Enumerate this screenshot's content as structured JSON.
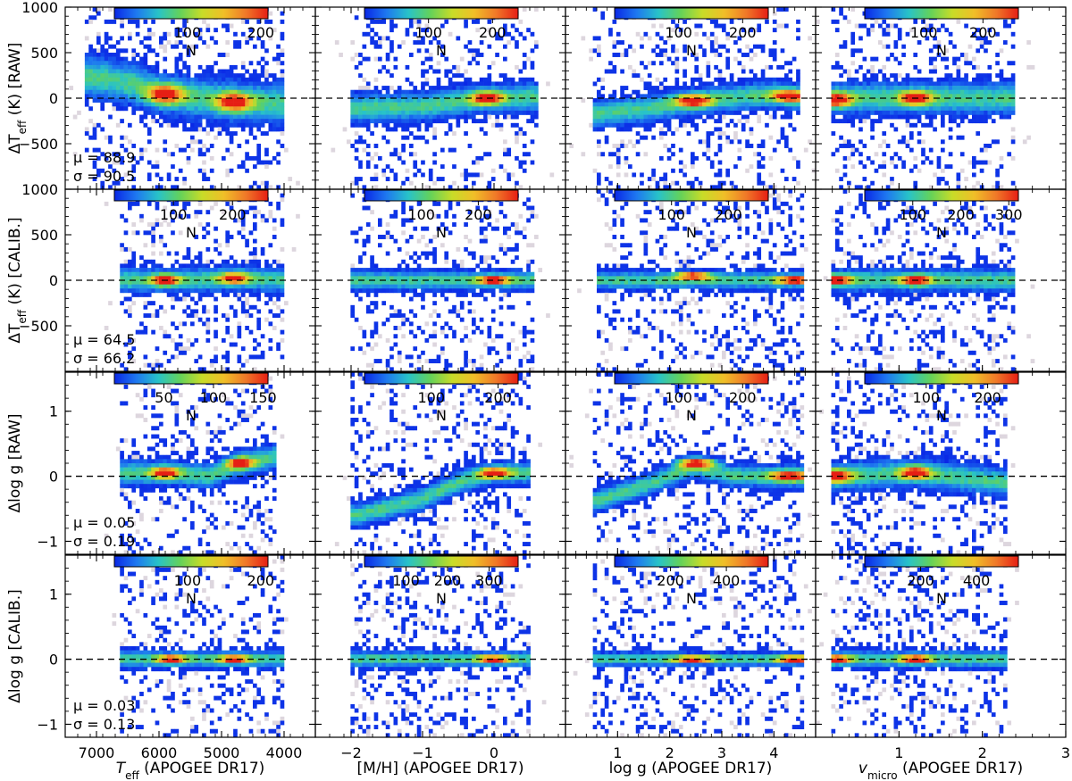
{
  "chart_data": {
    "type": "heatmap",
    "description_type": "2D histogram grid (4x4)",
    "columns": [
      {
        "name": "teff",
        "xlabel": "T_eff (APOGEE DR17)",
        "xlabel_main": "T",
        "xlabel_sub": "eff",
        "xlabel_rest": " (APOGEE DR17)",
        "xlim": [
          7500,
          3500
        ],
        "xticks": [
          7000,
          6000,
          5000,
          4000
        ],
        "xtick_labels": [
          "7000",
          "6000",
          "5000",
          "4000"
        ]
      },
      {
        "name": "mh",
        "xlabel": "[M/H] (APOGEE DR17)",
        "xlabel_main": "[M/H] (APOGEE DR17)",
        "xlabel_sub": "",
        "xlabel_rest": "",
        "xlim": [
          -2.5,
          1.0
        ],
        "xticks": [
          -2,
          -1,
          0
        ],
        "xtick_labels": [
          "−2",
          "−1",
          "0"
        ]
      },
      {
        "name": "logg",
        "xlabel": "log g (APOGEE DR17)",
        "xlabel_main": "log g (APOGEE DR17)",
        "xlabel_sub": "",
        "xlabel_rest": "",
        "xlim": [
          0.0,
          4.8
        ],
        "xticks": [
          1,
          2,
          3,
          4
        ],
        "xtick_labels": [
          "1",
          "2",
          "3",
          "4"
        ]
      },
      {
        "name": "vmicro",
        "xlabel": "v_micro (APOGEE DR17)",
        "xlabel_main": "v",
        "xlabel_sub": "micro",
        "xlabel_rest": " (APOGEE DR17)",
        "xlim": [
          0.0,
          3.0
        ],
        "xticks": [
          1,
          2,
          3
        ],
        "xtick_labels": [
          "1",
          "2",
          "3"
        ]
      }
    ],
    "rows": [
      {
        "name": "dteff-raw",
        "ylabel": "ΔT_eff (K) [RAW]",
        "ylabel_main": "ΔT",
        "ylabel_sub": "eff",
        "ylabel_rest": " (K) [RAW]",
        "ylim": [
          -1000,
          1000
        ],
        "yticks": [
          1000,
          500,
          0,
          -500
        ],
        "ytick_labels": [
          "1000",
          "500",
          "0",
          "−500"
        ],
        "mu": "μ = 88.9",
        "sigma": "σ = 90.5"
      },
      {
        "name": "dteff-calib",
        "ylabel": "ΔT_eff (K) [CALIB.]",
        "ylabel_main": "ΔT",
        "ylabel_sub": "eff",
        "ylabel_rest": " (K) [CALIB.]",
        "ylim": [
          -1000,
          1000
        ],
        "yticks": [
          1000,
          500,
          0,
          -500
        ],
        "ytick_labels": [
          "1000",
          "500",
          "0",
          "−500"
        ],
        "mu": "μ = 64.5",
        "sigma": "σ = 66.2"
      },
      {
        "name": "dlogg-raw",
        "ylabel": "Δlog g [RAW]",
        "ylabel_main": "Δlog g [RAW]",
        "ylabel_sub": "",
        "ylabel_rest": "",
        "ylim": [
          -1.2,
          1.6
        ],
        "yticks": [
          1,
          0,
          -1
        ],
        "ytick_labels": [
          "1",
          "0",
          "−1"
        ],
        "mu": "μ = 0.05",
        "sigma": "σ = 0.19"
      },
      {
        "name": "dlogg-calib",
        "ylabel": "Δlog g [CALIB.]",
        "ylabel_main": "Δlog g [CALIB.]",
        "ylabel_sub": "",
        "ylabel_rest": "",
        "ylim": [
          -1.2,
          1.6
        ],
        "yticks": [
          1,
          0,
          -1
        ],
        "ytick_labels": [
          "1",
          "0",
          "−1"
        ],
        "mu": "μ = 0.03",
        "sigma": "σ = 0.13"
      }
    ],
    "colorbars": [
      [
        {
          "max": 210,
          "ticks": [
            100,
            200
          ],
          "labels": [
            "100",
            "200"
          ]
        },
        {
          "max": 240,
          "ticks": [
            100,
            200
          ],
          "labels": [
            "100",
            "200"
          ]
        },
        {
          "max": 240,
          "ticks": [
            100,
            200
          ],
          "labels": [
            "100",
            "200"
          ]
        },
        {
          "max": 260,
          "ticks": [
            100,
            200
          ],
          "labels": [
            "100",
            "200"
          ]
        }
      ],
      [
        {
          "max": 260,
          "ticks": [
            100,
            200
          ],
          "labels": [
            "100",
            "200"
          ]
        },
        {
          "max": 270,
          "ticks": [
            100,
            200
          ],
          "labels": [
            "100",
            "200"
          ]
        },
        {
          "max": 270,
          "ticks": [
            100,
            200
          ],
          "labels": [
            "100",
            "200"
          ]
        },
        {
          "max": 320,
          "ticks": [
            100,
            200,
            300
          ],
          "labels": [
            "100",
            "200",
            "300"
          ]
        }
      ],
      [
        {
          "max": 155,
          "ticks": [
            50,
            100,
            150
          ],
          "labels": [
            "50",
            "100",
            "150"
          ]
        },
        {
          "max": 230,
          "ticks": [
            100,
            200
          ],
          "labels": [
            "100",
            "200"
          ]
        },
        {
          "max": 240,
          "ticks": [
            100,
            200
          ],
          "labels": [
            "100",
            "200"
          ]
        },
        {
          "max": 250,
          "ticks": [
            100,
            200
          ],
          "labels": [
            "100",
            "200"
          ]
        }
      ],
      [
        {
          "max": 210,
          "ticks": [
            100,
            200
          ],
          "labels": [
            "100",
            "200"
          ]
        },
        {
          "max": 370,
          "ticks": [
            100,
            200,
            300
          ],
          "labels": [
            "100",
            "200",
            "300"
          ]
        },
        {
          "max": 550,
          "ticks": [
            200,
            400
          ],
          "labels": [
            "200",
            "400"
          ]
        },
        {
          "max": 550,
          "ticks": [
            200,
            400
          ],
          "labels": [
            "200",
            "400"
          ]
        }
      ]
    ],
    "colorbar_label": "N",
    "colormap": [
      "#0a28e6",
      "#1e78f0",
      "#28c3c8",
      "#64d25a",
      "#c8dc28",
      "#f0be28",
      "#f07828",
      "#e61e14"
    ],
    "background_bin_color": "#ddd6de",
    "reference_line": {
      "y": 0,
      "style": "dashed",
      "color": "#000000"
    },
    "blobs": [
      [
        {
          "band": [
            [
              7100,
              240
            ],
            [
              6400,
              150
            ],
            [
              6000,
              60
            ],
            [
              5400,
              0
            ],
            [
              4800,
              -40
            ],
            [
              4000,
              -60
            ]
          ],
          "core": [
            [
              5900,
              40
            ],
            [
              4800,
              -40
            ]
          ],
          "xr": [
            7200,
            4000
          ],
          "spread": 260
        },
        {
          "band": [
            [
              -1.9,
              -110
            ],
            [
              -1.0,
              -90
            ],
            [
              -0.5,
              -40
            ],
            [
              0.0,
              0
            ],
            [
              0.5,
              10
            ]
          ],
          "core": [
            [
              -0.1,
              0
            ]
          ],
          "xr": [
            -2.0,
            0.6
          ],
          "spread": 180
        },
        {
          "band": [
            [
              0.6,
              -170
            ],
            [
              1.5,
              -120
            ],
            [
              2.4,
              -40
            ],
            [
              3.2,
              0
            ],
            [
              4.0,
              40
            ],
            [
              4.5,
              10
            ]
          ],
          "core": [
            [
              2.45,
              -30
            ],
            [
              4.3,
              20
            ]
          ],
          "xr": [
            0.5,
            4.5
          ],
          "spread": 170
        },
        {
          "band": [
            [
              0.25,
              0
            ],
            [
              1.2,
              0
            ],
            [
              2.3,
              0
            ]
          ],
          "core": [
            [
              1.2,
              0
            ],
            [
              0.25,
              -20
            ]
          ],
          "xr": [
            0.2,
            2.4
          ],
          "spread": 200
        }
      ],
      [
        {
          "band": [
            [
              6600,
              0
            ],
            [
              5500,
              0
            ],
            [
              4800,
              20
            ],
            [
              4000,
              0
            ]
          ],
          "core": [
            [
              5900,
              0
            ],
            [
              4800,
              20
            ]
          ],
          "xr": [
            6600,
            4000
          ],
          "spread": 150
        },
        {
          "band": [
            [
              -1.9,
              0
            ],
            [
              -1.0,
              0
            ],
            [
              0.0,
              0
            ],
            [
              0.5,
              0
            ]
          ],
          "core": [
            [
              0.0,
              0
            ]
          ],
          "xr": [
            -2.0,
            0.55
          ],
          "spread": 120
        },
        {
          "band": [
            [
              0.6,
              0
            ],
            [
              2.0,
              0
            ],
            [
              3.0,
              0
            ],
            [
              4.5,
              0
            ]
          ],
          "core": [
            [
              2.45,
              50
            ],
            [
              4.4,
              0
            ]
          ],
          "xr": [
            0.6,
            4.6
          ],
          "spread": 110
        },
        {
          "band": [
            [
              0.25,
              0
            ],
            [
              1.2,
              0
            ],
            [
              2.3,
              0
            ]
          ],
          "core": [
            [
              1.2,
              0
            ],
            [
              0.25,
              0
            ]
          ],
          "xr": [
            0.2,
            2.4
          ],
          "spread": 140
        }
      ],
      [
        {
          "band": [
            [
              6500,
              0.05
            ],
            [
              5800,
              0.05
            ],
            [
              5200,
              0.0
            ],
            [
              4700,
              0.2
            ],
            [
              4100,
              0.3
            ]
          ],
          "core": [
            [
              5900,
              0.05
            ],
            [
              4700,
              0.2
            ]
          ],
          "xr": [
            6600,
            4100
          ],
          "spread": 0.22
        },
        {
          "band": [
            [
              -1.9,
              -0.6
            ],
            [
              -1.0,
              -0.35
            ],
            [
              -0.5,
              -0.1
            ],
            [
              0.0,
              0.05
            ],
            [
              0.5,
              0.05
            ]
          ],
          "core": [
            [
              0.0,
              0.05
            ]
          ],
          "xr": [
            -2.0,
            0.5
          ],
          "spread": 0.2
        },
        {
          "band": [
            [
              0.5,
              -0.4
            ],
            [
              1.5,
              -0.15
            ],
            [
              2.5,
              0.15
            ],
            [
              3.2,
              0.0
            ],
            [
              4.0,
              0.0
            ],
            [
              4.5,
              0.0
            ]
          ],
          "core": [
            [
              2.5,
              0.2
            ],
            [
              4.3,
              0.0
            ]
          ],
          "xr": [
            0.5,
            4.6
          ],
          "spread": 0.2
        },
        {
          "band": [
            [
              0.25,
              0.0
            ],
            [
              1.2,
              0.05
            ],
            [
              2.3,
              -0.1
            ]
          ],
          "core": [
            [
              1.2,
              0.05
            ],
            [
              0.25,
              0.0
            ]
          ],
          "xr": [
            0.2,
            2.3
          ],
          "spread": 0.25
        }
      ],
      [
        {
          "band": [
            [
              6600,
              0.0
            ],
            [
              5800,
              0.0
            ],
            [
              4800,
              0.0
            ],
            [
              4000,
              0.0
            ]
          ],
          "core": [
            [
              5800,
              0.0
            ],
            [
              4800,
              0.0
            ]
          ],
          "xr": [
            6600,
            4000
          ],
          "spread": 0.15
        },
        {
          "band": [
            [
              -1.9,
              0.0
            ],
            [
              -1.0,
              0.0
            ],
            [
              0.0,
              0.0
            ],
            [
              0.5,
              0.0
            ]
          ],
          "core": [
            [
              0.0,
              0.0
            ]
          ],
          "xr": [
            -2.0,
            0.5
          ],
          "spread": 0.14
        },
        {
          "band": [
            [
              0.5,
              0.0
            ],
            [
              2.0,
              0.0
            ],
            [
              3.0,
              0.0
            ],
            [
              4.6,
              0.0
            ]
          ],
          "core": [
            [
              2.45,
              0.0
            ],
            [
              4.4,
              0.0
            ]
          ],
          "xr": [
            0.5,
            4.6
          ],
          "spread": 0.12
        },
        {
          "band": [
            [
              0.25,
              0.0
            ],
            [
              1.2,
              0.0
            ],
            [
              2.3,
              0.0
            ]
          ],
          "core": [
            [
              1.2,
              0.0
            ],
            [
              0.25,
              0.0
            ]
          ],
          "xr": [
            0.2,
            2.3
          ],
          "spread": 0.15
        }
      ]
    ]
  }
}
